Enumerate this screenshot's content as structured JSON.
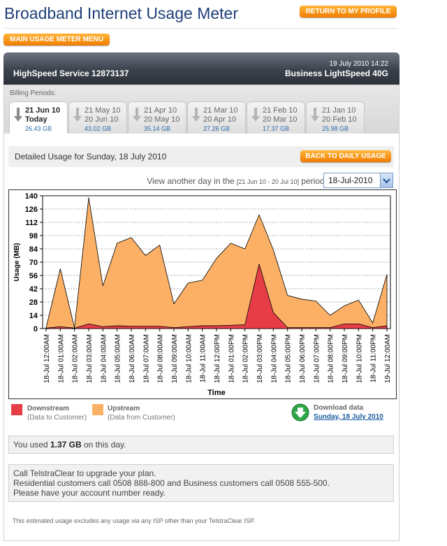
{
  "header": {
    "title": "Broadband Internet Usage Meter",
    "return_button": "Return to My Profile",
    "menu_button": "Main Usage Meter Menu"
  },
  "account": {
    "datetime": "19 July 2010 14:22",
    "service": "HighSpeed Service 12873137",
    "plan": "Business LightSpeed 40G"
  },
  "billing": {
    "label": "Billing Periods:",
    "periods": [
      {
        "from": "21 Jun 10",
        "to": "Today",
        "usage": "26.43 GB",
        "active": true
      },
      {
        "from": "21 May 10",
        "to": "20 Jun 10",
        "usage": "43.02 GB",
        "active": false
      },
      {
        "from": "21 Apr 10",
        "to": "20 May 10",
        "usage": "35.14 GB",
        "active": false
      },
      {
        "from": "21 Mar 10",
        "to": "20 Apr 10",
        "usage": "27.26 GB",
        "active": false
      },
      {
        "from": "21 Feb 10",
        "to": "20 Mar 10",
        "usage": "17.37 GB",
        "active": false
      },
      {
        "from": "21 Jan 10",
        "to": "20 Feb 10",
        "usage": "25.98 GB",
        "active": false
      }
    ]
  },
  "detail": {
    "title": "Detailed Usage for Sunday, 18 July 2010",
    "back_button": "Back to Daily Usage",
    "view_prefix": "View another day in the",
    "view_range": "[21 Jun 10 - 20 Jul 10]",
    "view_suffix": "period:",
    "selected_day": "18-Jul-2010"
  },
  "chart_data": {
    "type": "area",
    "xlabel": "Time",
    "ylabel": "Usage (MB)",
    "ylim": [
      0,
      140
    ],
    "yticks": [
      0,
      14,
      28,
      42,
      56,
      70,
      84,
      98,
      112,
      126,
      140
    ],
    "grid": true,
    "x": [
      "18-Jul 12:00AM",
      "18-Jul 01:00AM",
      "18-Jul 02:00AM",
      "18-Jul 03:00AM",
      "18-Jul 04:00AM",
      "18-Jul 05:00AM",
      "18-Jul 06:00AM",
      "18-Jul 07:00AM",
      "18-Jul 08:00AM",
      "18-Jul 09:00AM",
      "18-Jul 10:00AM",
      "18-Jul 11:00AM",
      "18-Jul 12:00PM",
      "18-Jul 01:00PM",
      "18-Jul 02:00PM",
      "18-Jul 03:00PM",
      "18-Jul 04:00PM",
      "18-Jul 05:00PM",
      "18-Jul 06:00PM",
      "18-Jul 07:00PM",
      "18-Jul 08:00PM",
      "18-Jul 09:00PM",
      "18-Jul 10:00PM",
      "18-Jul 11:00PM",
      "19-Jul 12:00AM"
    ],
    "series": [
      {
        "name": "Upstream",
        "color": "#fbb066",
        "values": [
          1,
          63,
          1,
          138,
          45,
          90,
          96,
          77,
          88,
          26,
          48,
          51,
          74,
          90,
          84,
          120,
          83,
          35,
          31,
          29,
          14,
          24,
          30,
          6,
          57
        ]
      },
      {
        "name": "Downstream",
        "color": "#e63d47",
        "values": [
          0.5,
          2,
          0.5,
          5,
          2,
          3,
          2.5,
          2.5,
          2.5,
          1,
          2,
          3,
          3,
          3.5,
          4,
          68,
          17,
          1,
          1,
          1,
          1,
          5,
          5,
          1,
          3
        ]
      }
    ]
  },
  "legend": {
    "downstream": {
      "name": "Downstream",
      "sub": "(Data to Customer)",
      "color": "#e63d47"
    },
    "upstream": {
      "name": "Upstream",
      "sub": "(Data from Customer)",
      "color": "#fbb066"
    }
  },
  "download": {
    "title": "Download data",
    "link": "Sunday, 18 July 2010",
    "icon": "download-arrow-icon",
    "color": "#2ea64a"
  },
  "usage_summary": {
    "prefix": "You used",
    "amount": "1.37 GB",
    "suffix": "on this day."
  },
  "upgrade": {
    "line1": "Call TelstraClear to upgrade your plan.",
    "line2": "Residential customers call 0508 888-800 and Business customers call 0508 555-500.",
    "line3": "Please have your account number ready."
  },
  "footnote": "This estimated usage excludes any usage via any ISP other than your TelstraClear ISP."
}
